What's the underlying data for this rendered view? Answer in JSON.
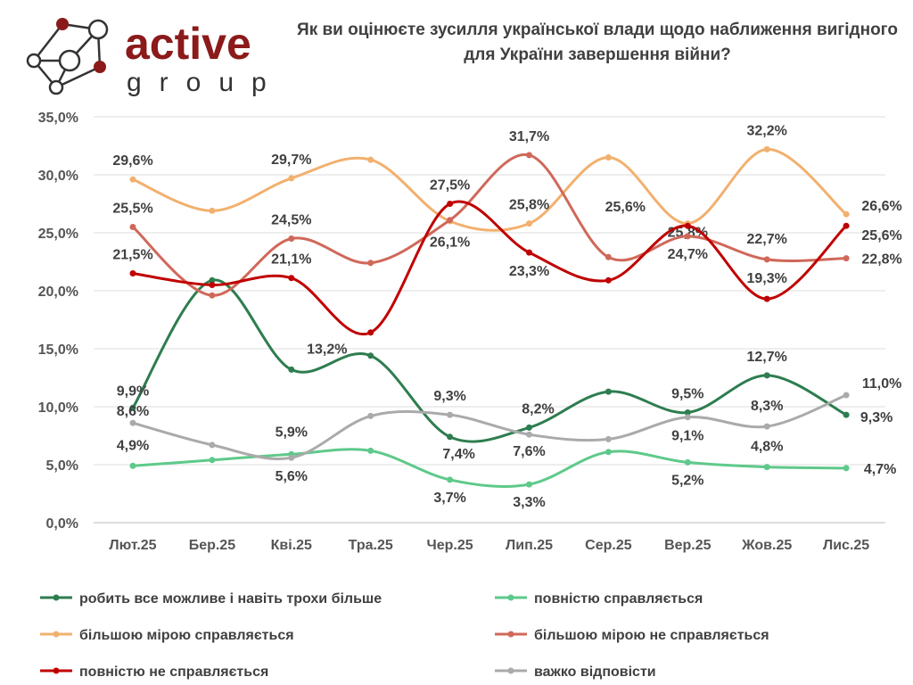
{
  "logo": {
    "word1": "active",
    "word2": "group",
    "color": "#8b1a1a"
  },
  "chart_data": {
    "type": "line",
    "title": "Як ви оцінюєте зусилля української влади щодо наближення вигідного для України завершення війни?",
    "categories": [
      "Лют.25",
      "Бер.25",
      "Кві.25",
      "Тра.25",
      "Чер.25",
      "Лип.25",
      "Сер.25",
      "Вер.25",
      "Жов.25",
      "Лис.25"
    ],
    "ylim": [
      0,
      35
    ],
    "yticks": [
      "0,0%",
      "5,0%",
      "10,0%",
      "15,0%",
      "20,0%",
      "25,0%",
      "30,0%",
      "35,0%"
    ],
    "grid": true,
    "legend_position": "bottom",
    "series": [
      {
        "name": "робить все можливе і навіть трохи більше",
        "color": "#2e7d4f",
        "values": [
          9.9,
          20.9,
          13.2,
          14.4,
          7.4,
          8.2,
          11.3,
          9.5,
          12.7,
          9.3
        ],
        "labels": [
          "9,9%",
          null,
          "13,2%",
          null,
          "7,4%",
          "8,2%",
          null,
          "9,5%",
          "12,7%",
          "9,3%"
        ]
      },
      {
        "name": "повністю справляється",
        "color": "#5ec98a",
        "values": [
          4.9,
          5.4,
          5.9,
          6.2,
          3.7,
          3.3,
          6.1,
          5.2,
          4.8,
          4.7
        ],
        "labels": [
          "4,9%",
          null,
          "5,9%",
          null,
          "3,7%",
          "3,3%",
          null,
          "5,2%",
          "4,8%",
          "4,7%"
        ]
      },
      {
        "name": "більшою мірою справляється",
        "color": "#f2b06e",
        "values": [
          29.6,
          26.9,
          29.7,
          31.3,
          26.0,
          25.8,
          31.5,
          25.8,
          32.2,
          26.6
        ],
        "labels": [
          "29,6%",
          null,
          "29,7%",
          null,
          null,
          "25,8%",
          null,
          "25,8%",
          "32,2%",
          "26,6%"
        ]
      },
      {
        "name": "більшою мірою не справляється",
        "color": "#d0685a",
        "values": [
          25.5,
          19.6,
          24.5,
          22.4,
          26.1,
          31.7,
          22.9,
          24.7,
          22.7,
          22.8
        ],
        "labels": [
          "25,5%",
          null,
          "24,5%",
          null,
          "26,1%",
          "31,7%",
          null,
          "24,7%",
          "22,7%",
          "22,8%"
        ]
      },
      {
        "name": "повністю не справляється",
        "color": "#c00000",
        "values": [
          21.5,
          20.5,
          21.1,
          16.4,
          27.5,
          23.3,
          20.9,
          25.6,
          19.3,
          25.6
        ],
        "labels": [
          "21,5%",
          null,
          "21,1%",
          null,
          "27,5%",
          "23,3%",
          null,
          "25,6%",
          "19,3%",
          "25,6%"
        ]
      },
      {
        "name": "важко відповісти",
        "color": "#aaaaaa",
        "values": [
          8.6,
          6.7,
          5.6,
          9.2,
          9.3,
          7.6,
          7.2,
          9.1,
          8.3,
          11.0
        ],
        "labels": [
          "8,6%",
          null,
          "5,6%",
          null,
          "9,3%",
          "7,6%",
          null,
          "9,1%",
          "8,3%",
          "11,0%"
        ]
      }
    ]
  }
}
